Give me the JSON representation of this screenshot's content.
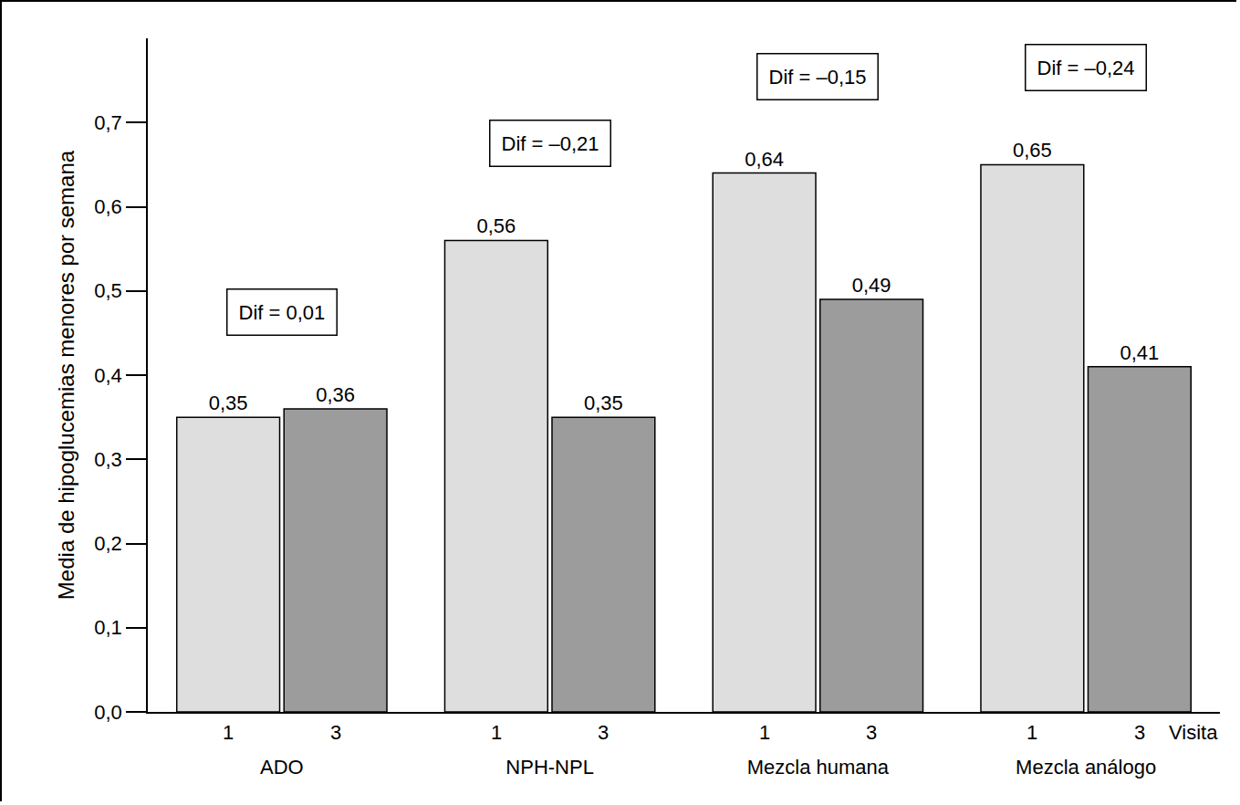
{
  "chart_data": {
    "type": "bar",
    "ylabel": "Media de hipoglucemias menores por semana",
    "xlabel": "Visita",
    "categories": [
      "ADO",
      "NPH-NPL",
      "Mezcla humana",
      "Mezcla análogo"
    ],
    "series": [
      {
        "name": "1",
        "color": "#dedede",
        "values": [
          0.35,
          0.56,
          0.64,
          0.65
        ],
        "value_labels": [
          "0,35",
          "0,56",
          "0,64",
          "0,65"
        ]
      },
      {
        "name": "3",
        "color": "#9c9c9c",
        "values": [
          0.36,
          0.35,
          0.49,
          0.41
        ],
        "value_labels": [
          "0,36",
          "0,35",
          "0,49",
          "0,41"
        ]
      }
    ],
    "annotations": [
      {
        "category": "ADO",
        "text": "Dif = 0,01"
      },
      {
        "category": "NPH-NPL",
        "text": "Dif = –0,21"
      },
      {
        "category": "Mezcla humana",
        "text": "Dif = –0,15"
      },
      {
        "category": "Mezcla análogo",
        "text": "Dif = –0,24"
      }
    ],
    "ylim": [
      0,
      0.8
    ],
    "yticks": [
      {
        "value": 0,
        "label": "0,0"
      },
      {
        "value": 0.1,
        "label": "0,1"
      },
      {
        "value": 0.2,
        "label": "0,2"
      },
      {
        "value": 0.3,
        "label": "0,3"
      },
      {
        "value": 0.4,
        "label": "0,4"
      },
      {
        "value": 0.5,
        "label": "0,5"
      },
      {
        "value": 0.6,
        "label": "0,6"
      },
      {
        "value": 0.7,
        "label": "0,7"
      }
    ],
    "data_labels": true,
    "grid": false
  }
}
